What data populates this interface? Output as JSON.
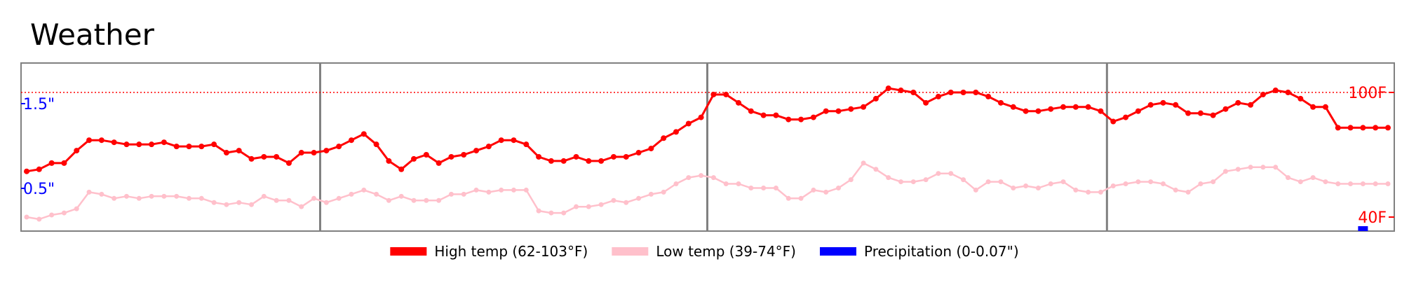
{
  "chart_data": {
    "type": "line",
    "title": "Weather",
    "x": [
      1,
      2,
      3,
      4,
      5,
      6,
      7,
      8,
      9,
      10,
      11,
      12,
      13,
      14,
      15,
      16,
      17,
      18,
      19,
      20,
      21,
      22,
      23,
      24,
      25,
      26,
      27,
      28,
      29,
      30,
      31,
      32,
      33,
      34,
      35,
      36,
      37,
      38,
      39,
      40,
      41,
      42,
      43,
      44,
      45,
      46,
      47,
      48,
      49,
      50,
      51,
      52,
      53,
      54,
      55,
      56,
      57,
      58,
      59,
      60,
      61,
      62,
      63,
      64,
      65,
      66,
      67,
      68,
      69,
      70,
      71,
      72,
      73,
      74,
      75,
      76,
      77,
      78,
      79,
      80,
      81,
      82,
      83,
      84,
      85,
      86,
      87,
      88,
      89,
      90,
      91,
      92,
      93,
      94,
      95,
      96,
      97,
      98,
      99,
      100,
      101,
      102,
      103,
      104,
      105,
      106,
      107,
      108,
      109,
      110
    ],
    "series": [
      {
        "name": "High temp (62-103°F)",
        "color": "#ff0000",
        "axis": "temp",
        "values": [
          62,
          63,
          66,
          66,
          72,
          77,
          77,
          76,
          75,
          75,
          75,
          76,
          74,
          74,
          74,
          75,
          71,
          72,
          68,
          69,
          69,
          66,
          71,
          71,
          72,
          74,
          77,
          80,
          75,
          67,
          63,
          68,
          70,
          66,
          69,
          70,
          72,
          74,
          77,
          77,
          75,
          69,
          67,
          67,
          69,
          67,
          67,
          69,
          69,
          71,
          73,
          78,
          81,
          85,
          88,
          99,
          99,
          95,
          91,
          89,
          89,
          87,
          87,
          88,
          91,
          91,
          92,
          93,
          97,
          102,
          101,
          100,
          95,
          98,
          100,
          100,
          100,
          98,
          95,
          93,
          91,
          91,
          92,
          93,
          93,
          93,
          91,
          86,
          88,
          91,
          94,
          95,
          94,
          90,
          90,
          89,
          92,
          95,
          94,
          99,
          101,
          100,
          97,
          93,
          93,
          83,
          83,
          83,
          83,
          83
        ],
        "y_shown": [
          62,
          63,
          66,
          66,
          72,
          77,
          77,
          76,
          75,
          75,
          75,
          76,
          74,
          74,
          74,
          75,
          71,
          72,
          68,
          69,
          69,
          66,
          71,
          71,
          72,
          74,
          77,
          80,
          75,
          67,
          63,
          68,
          70,
          66,
          69,
          70,
          72,
          74,
          77,
          77,
          75,
          69,
          67,
          67,
          69,
          67,
          67,
          69,
          69,
          71,
          73,
          78,
          81,
          85,
          88,
          99,
          99,
          95,
          91,
          89,
          89,
          87,
          87,
          88,
          91,
          91,
          92,
          93,
          97,
          102,
          101,
          100,
          95,
          98,
          100,
          100,
          100,
          98,
          95,
          93,
          91,
          91,
          92,
          93,
          93,
          93,
          91,
          86,
          88,
          91,
          94,
          95,
          94,
          90,
          90,
          89,
          92,
          95,
          94,
          99,
          101,
          100,
          97,
          93,
          93,
          83,
          83,
          83,
          83,
          83
        ]
      },
      {
        "name": "Low temp (39-74°F)",
        "color": "#ffc0cb",
        "axis": "temp",
        "values": [
          40,
          39,
          41,
          42,
          44,
          52,
          51,
          49,
          50,
          49,
          50,
          50,
          50,
          49,
          49,
          47,
          46,
          47,
          46,
          50,
          48,
          48,
          45,
          49,
          47,
          49,
          51,
          53,
          51,
          48,
          50,
          48,
          48,
          48,
          51,
          51,
          53,
          52,
          53,
          53,
          53,
          43,
          42,
          42,
          45,
          45,
          46,
          48,
          47,
          49,
          51,
          52,
          56,
          59,
          60,
          59,
          56,
          56,
          54,
          54,
          54,
          49,
          49,
          53,
          52,
          54,
          58,
          66,
          63,
          59,
          57,
          57,
          58,
          61,
          61,
          58,
          53,
          57,
          57,
          54,
          55,
          54,
          56,
          57,
          53,
          52,
          52,
          55,
          56,
          57,
          57,
          56,
          53,
          52,
          56,
          57,
          62,
          63,
          64,
          64,
          64,
          59,
          57,
          59,
          57,
          56,
          56,
          56,
          56,
          56
        ]
      },
      {
        "name": "Precipitation (0-0.07\")",
        "color": "#0000ff",
        "axis": "precip",
        "values": [
          0,
          0,
          0,
          0,
          0,
          0,
          0,
          0,
          0,
          0,
          0,
          0,
          0,
          0,
          0,
          0,
          0,
          0,
          0,
          0,
          0,
          0,
          0,
          0,
          0,
          0,
          0,
          0,
          0,
          0,
          0,
          0,
          0,
          0,
          0,
          0,
          0,
          0,
          0,
          0,
          0,
          0,
          0,
          0,
          0,
          0,
          0,
          0,
          0,
          0,
          0,
          0,
          0,
          0,
          0,
          0,
          0,
          0,
          0,
          0,
          0,
          0,
          0,
          0,
          0,
          0,
          0,
          0,
          0,
          0,
          0,
          0,
          0,
          0,
          0,
          0,
          0,
          0,
          0,
          0,
          0,
          0,
          0,
          0,
          0,
          0,
          0,
          0,
          0,
          0,
          0,
          0,
          0,
          0,
          0,
          0,
          0,
          0,
          0,
          0,
          0,
          0,
          0,
          0,
          0,
          0,
          0,
          0.07,
          0,
          0
        ]
      }
    ],
    "temp_axis": {
      "ticks": [
        {
          "value": 100,
          "label": "100F"
        },
        {
          "value": 40,
          "label": "40F"
        }
      ],
      "side": "right",
      "color": "#ff0000"
    },
    "precip_axis": {
      "ticks": [
        {
          "value": 1.5,
          "label": "1.5\""
        },
        {
          "value": 0.5,
          "label": "0.5\""
        }
      ],
      "side": "left",
      "color": "#0000ff"
    },
    "reference_line": {
      "value": 100,
      "axis": "temp",
      "style": "dotted",
      "color": "#ff0000"
    },
    "period_dividers_x": [
      24.5,
      55.5,
      87.5
    ],
    "legend": {
      "placement": "bottom-center"
    }
  }
}
